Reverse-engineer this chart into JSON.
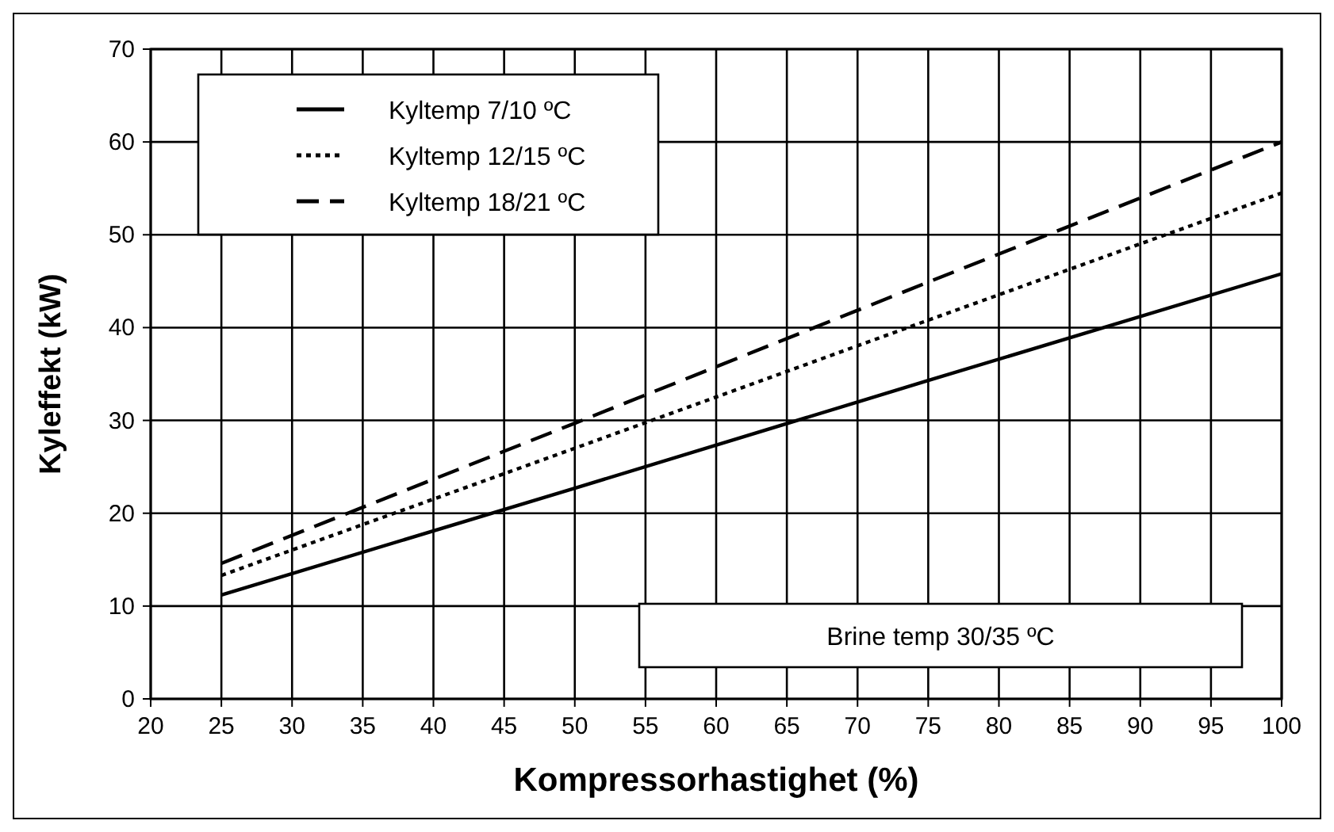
{
  "chart_data": {
    "type": "line",
    "xlabel": "Kompressorhastighet (%)",
    "ylabel": "Kyleffekt (kW)",
    "x": [
      25,
      50,
      75,
      100
    ],
    "series": [
      {
        "name": "Kyltemp 7/10 ºC",
        "color": "#000000",
        "line_style": "solid",
        "values": [
          11.2,
          22.7,
          34.3,
          45.8
        ]
      },
      {
        "name": "Kyltemp 12/15 ºC",
        "color": "#000000",
        "line_style": "dotted",
        "values": [
          13.3,
          27,
          40.8,
          54.5
        ]
      },
      {
        "name": "Kyltemp 18/21 ºC",
        "color": "#000000",
        "line_style": "dashed",
        "values": [
          14.6,
          29.7,
          44.9,
          60
        ]
      }
    ],
    "xlim": [
      20,
      100
    ],
    "xticks": [
      20,
      25,
      30,
      35,
      40,
      45,
      50,
      55,
      60,
      65,
      70,
      75,
      80,
      85,
      90,
      95,
      100
    ],
    "ylim": [
      0,
      70
    ],
    "yticks": [
      0,
      10,
      20,
      30,
      40,
      50,
      60,
      70
    ],
    "grid": true,
    "legend": "top left",
    "annotations": [
      "Brine temp 30/35 ºC"
    ]
  }
}
